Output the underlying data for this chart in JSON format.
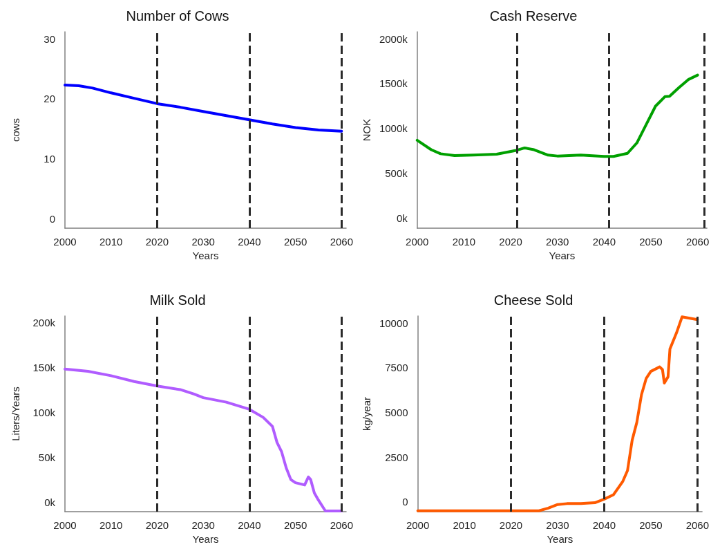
{
  "chart_data": [
    {
      "type": "line",
      "title": "Number of Cows",
      "xlabel": "Years",
      "ylabel": "cows",
      "color": "#0000ff",
      "line_style": "solid",
      "marker": "none",
      "grid": false,
      "x": [
        2000,
        2003,
        2006,
        2010,
        2015,
        2020,
        2025,
        2030,
        2035,
        2040,
        2045,
        2050,
        2055,
        2060
      ],
      "values": [
        22.3,
        22.2,
        21.8,
        21.0,
        20.1,
        19.2,
        18.6,
        17.9,
        17.2,
        16.5,
        15.8,
        15.2,
        14.8,
        14.6
      ],
      "xlim": [
        2000,
        2061
      ],
      "xticks": [
        2000,
        2010,
        2020,
        2030,
        2040,
        2050,
        2060
      ],
      "ylim": [
        -1.6,
        31.2
      ],
      "yticks": [
        0,
        10,
        20,
        30
      ],
      "ref_lines": [
        {
          "axis": "x",
          "value": 2020,
          "color": "#2b2b2b",
          "line_style": "dashed"
        },
        {
          "axis": "x",
          "value": 2040,
          "color": "#2b2b2b",
          "line_style": "dashed"
        },
        {
          "axis": "x",
          "value": 2060,
          "color": "#2b2b2b",
          "line_style": "dashed"
        }
      ]
    },
    {
      "type": "line",
      "title": "Cash Reserve",
      "xlabel": "Years",
      "ylabel": "NOK",
      "color": "#00a000",
      "line_style": "solid",
      "marker": "none",
      "grid": false,
      "x": [
        2000,
        2003,
        2005,
        2008,
        2012,
        2017,
        2021,
        2023,
        2025,
        2028,
        2030,
        2035,
        2040,
        2042,
        2045,
        2047,
        2049,
        2051,
        2053,
        2054,
        2056,
        2058,
        2060
      ],
      "values": [
        870000,
        765000,
        720000,
        700000,
        705000,
        715000,
        755000,
        785000,
        765000,
        705000,
        695000,
        705000,
        690000,
        690000,
        725000,
        840000,
        1045000,
        1250000,
        1355000,
        1360000,
        1455000,
        1545000,
        1595000
      ],
      "xlim": [
        2000,
        2062
      ],
      "xticks": [
        2000,
        2010,
        2020,
        2030,
        2040,
        2050,
        2060
      ],
      "ylim": [
        -108000,
        2077000
      ],
      "yticks": [
        {
          "value": 0,
          "label": "0k"
        },
        {
          "value": 500000,
          "label": "500k"
        },
        {
          "value": 1000000,
          "label": "1000k"
        },
        {
          "value": 1500000,
          "label": "1500k"
        },
        {
          "value": 2000000,
          "label": "2000k"
        }
      ],
      "ref_lines": [
        {
          "axis": "x",
          "value": 2021.3,
          "color": "#2b2b2b",
          "line_style": "dashed"
        },
        {
          "axis": "x",
          "value": 2041,
          "color": "#2b2b2b",
          "line_style": "dashed"
        },
        {
          "axis": "x",
          "value": 2061.5,
          "color": "#2b2b2b",
          "line_style": "dashed"
        }
      ]
    },
    {
      "type": "line",
      "title": "Milk Sold",
      "xlabel": "Years",
      "ylabel": "Liters/Years",
      "color": "#b05cff",
      "line_style": "solid",
      "marker": "none",
      "grid": false,
      "x": [
        2000,
        2005,
        2010,
        2015,
        2020,
        2025,
        2028,
        2030,
        2035,
        2040,
        2043,
        2045,
        2046,
        2047,
        2048,
        2049,
        2050,
        2052,
        2052.8,
        2053.3,
        2054.1,
        2055,
        2056.5,
        2058,
        2060
      ],
      "values": [
        148500,
        146000,
        141000,
        134500,
        129500,
        125500,
        120500,
        116500,
        111500,
        103500,
        94500,
        84500,
        66500,
        56000,
        38000,
        25000,
        21500,
        19000,
        28000,
        25000,
        10000,
        2000,
        -10000,
        -10000,
        -10000
      ],
      "xlim": [
        2000,
        2061
      ],
      "xticks": [
        2000,
        2010,
        2020,
        2030,
        2040,
        2050,
        2060
      ],
      "ylim": [
        -10800,
        207700
      ],
      "yticks": [
        {
          "value": 0,
          "label": "0k"
        },
        {
          "value": 50000,
          "label": "50k"
        },
        {
          "value": 100000,
          "label": "100k"
        },
        {
          "value": 150000,
          "label": "150k"
        },
        {
          "value": 200000,
          "label": "200k"
        }
      ],
      "ref_lines": [
        {
          "axis": "x",
          "value": 2020,
          "color": "#2b2b2b",
          "line_style": "dashed"
        },
        {
          "axis": "x",
          "value": 2040,
          "color": "#2b2b2b",
          "line_style": "dashed"
        },
        {
          "axis": "x",
          "value": 2060,
          "color": "#2b2b2b",
          "line_style": "dashed"
        }
      ]
    },
    {
      "type": "line",
      "title": "Cheese Sold",
      "xlabel": "Years",
      "ylabel": "kg/year",
      "color": "#ff5a00",
      "line_style": "solid",
      "marker": "none",
      "grid": false,
      "x": [
        2000,
        2010,
        2020,
        2024,
        2026,
        2028,
        2030,
        2032,
        2035,
        2038,
        2040,
        2042,
        2044,
        2045,
        2046,
        2047,
        2048,
        2049,
        2050,
        2051.9,
        2052.5,
        2052.9,
        2053.7,
        2054.1,
        2055.5,
        2056.7,
        2060
      ],
      "values": [
        -500,
        -500,
        -500,
        -500,
        -500,
        -350,
        -150,
        -100,
        -100,
        -50,
        150,
        400,
        1150,
        1750,
        3450,
        4450,
        6000,
        6900,
        7300,
        7550,
        7400,
        6650,
        7000,
        8550,
        9450,
        10350,
        10200
      ],
      "xlim": [
        2000,
        2061
      ],
      "xticks": [
        2000,
        2010,
        2020,
        2030,
        2040,
        2050,
        2060
      ],
      "ylim": [
        -550,
        10400
      ],
      "yticks": [
        0,
        2500,
        5000,
        7500,
        10000
      ],
      "ref_lines": [
        {
          "axis": "x",
          "value": 2020,
          "color": "#2b2b2b",
          "line_style": "dashed"
        },
        {
          "axis": "x",
          "value": 2040,
          "color": "#2b2b2b",
          "line_style": "dashed"
        },
        {
          "axis": "x",
          "value": 2060,
          "color": "#2b2b2b",
          "line_style": "dashed"
        }
      ]
    }
  ]
}
